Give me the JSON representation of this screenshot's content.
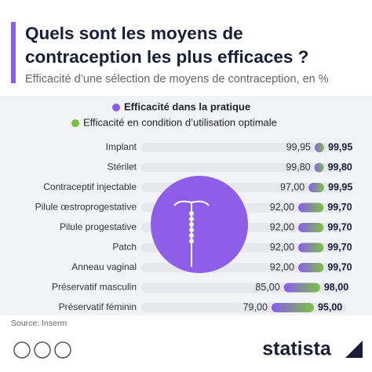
{
  "chart_data": {
    "type": "bar",
    "title": "Quels sont les moyens de contraception les plus efficaces ?",
    "subtitle": "Efficacité d’une sélection de moyens de contraception, en %",
    "categories": [
      "Implant",
      "Stérilet",
      "Contraceptif injectable",
      "Pilule œstroprogestative",
      "Pilule progestative",
      "Patch",
      "Anneau vaginal",
      "Préservatif masculin",
      "Préservatif féminin"
    ],
    "series": [
      {
        "name": "Efficacité dans la pratique",
        "color": "#8b5cf0",
        "values": [
          99.95,
          99.8,
          97,
          92,
          92,
          92,
          92,
          85,
          79
        ],
        "value_labels": [
          "99,95",
          "99,80",
          "97,00",
          "92,00",
          "92,00",
          "92,00",
          "92,00",
          "85,00",
          "79,00"
        ]
      },
      {
        "name": "Efficacité en condition d’utilisation optimale",
        "color": "#7cc242",
        "values": [
          99.95,
          99.8,
          99.95,
          99.7,
          99.7,
          99.7,
          99.7,
          98,
          95
        ],
        "value_labels": [
          "99,95",
          "99,80",
          "99,95",
          "99,70",
          "99,70",
          "99,70",
          "99,70",
          "98,00",
          "95,00"
        ]
      }
    ],
    "source": "Source: Inserm",
    "brand": "statista"
  }
}
